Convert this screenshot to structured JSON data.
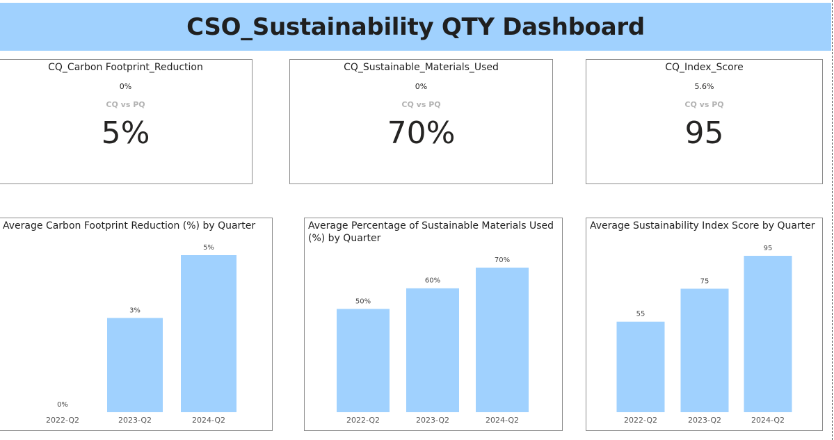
{
  "dashboard": {
    "title": "CSO_Sustainability QTY Dashboard"
  },
  "kpis": [
    {
      "title": "CQ_Carbon Footprint_Reduction",
      "change": "0%",
      "comparison_label": "CQ vs PQ",
      "value": "5%"
    },
    {
      "title": "CQ_Sustainable_Materials_Used",
      "change": "0%",
      "comparison_label": "CQ vs PQ",
      "value": "70%"
    },
    {
      "title": "CQ_Index_Score",
      "change": "5.6%",
      "comparison_label": "CQ vs PQ",
      "value": "95"
    }
  ],
  "colors": {
    "bar": "#a0d1fe",
    "title_bg": "#a0d1fe"
  },
  "chart_data": [
    {
      "type": "bar",
      "title": "Average Carbon Footprint Reduction (%) by Quarter",
      "categories": [
        "2022-Q2",
        "2023-Q2",
        "2024-Q2"
      ],
      "values": [
        0,
        3,
        5
      ],
      "data_labels": [
        "0%",
        "3%",
        "5%"
      ],
      "ylim": [
        0,
        5
      ],
      "grid": false
    },
    {
      "type": "bar",
      "title": "Average Percentage of Sustainable Materials Used (%) by Quarter",
      "categories": [
        "2022-Q2",
        "2023-Q2",
        "2024-Q2"
      ],
      "values": [
        50,
        60,
        70
      ],
      "data_labels": [
        "50%",
        "60%",
        "70%"
      ],
      "ylim": [
        0,
        70
      ],
      "grid": false
    },
    {
      "type": "bar",
      "title": "Average Sustainability Index Score by Quarter",
      "categories": [
        "2022-Q2",
        "2023-Q2",
        "2024-Q2"
      ],
      "values": [
        55,
        75,
        95
      ],
      "data_labels": [
        "55",
        "75",
        "95"
      ],
      "ylim": [
        0,
        95
      ],
      "grid": false
    }
  ]
}
